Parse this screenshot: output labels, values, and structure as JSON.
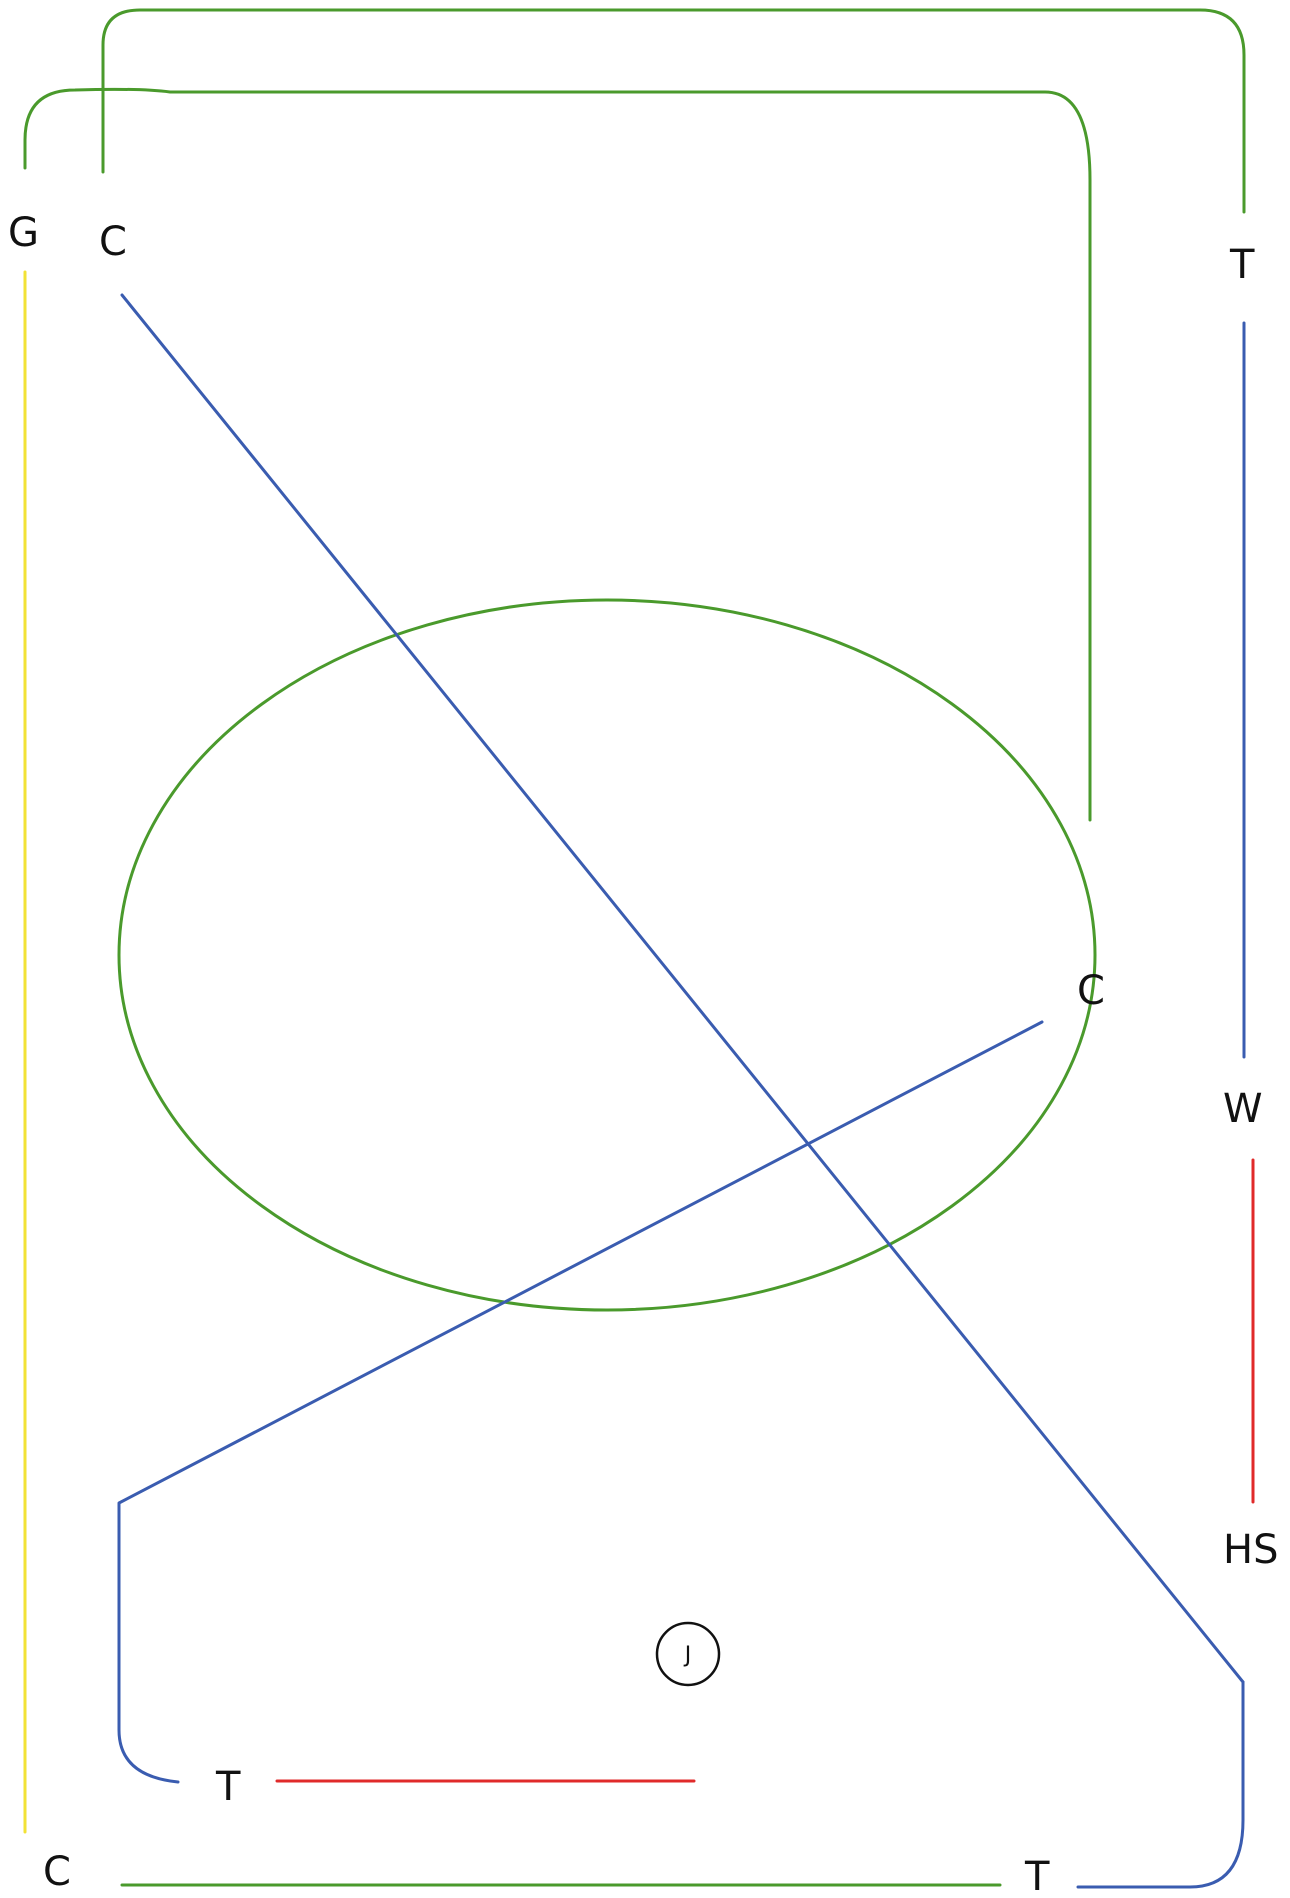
{
  "colors": {
    "green": "#4a9a2c",
    "blue": "#3a5cb0",
    "red": "#e02a2a",
    "yellow": "#f2e236",
    "text": "#111111"
  },
  "labels": {
    "g_top_left": "G",
    "c_top_left": "C",
    "t_top_right": "T",
    "c_ellipse_right": "C",
    "w_right": "W",
    "hs_right": "HS",
    "t_bottom_left": "T",
    "c_bottom_left": "C",
    "t_bottom_right": "T"
  },
  "marker": {
    "label": "J"
  }
}
